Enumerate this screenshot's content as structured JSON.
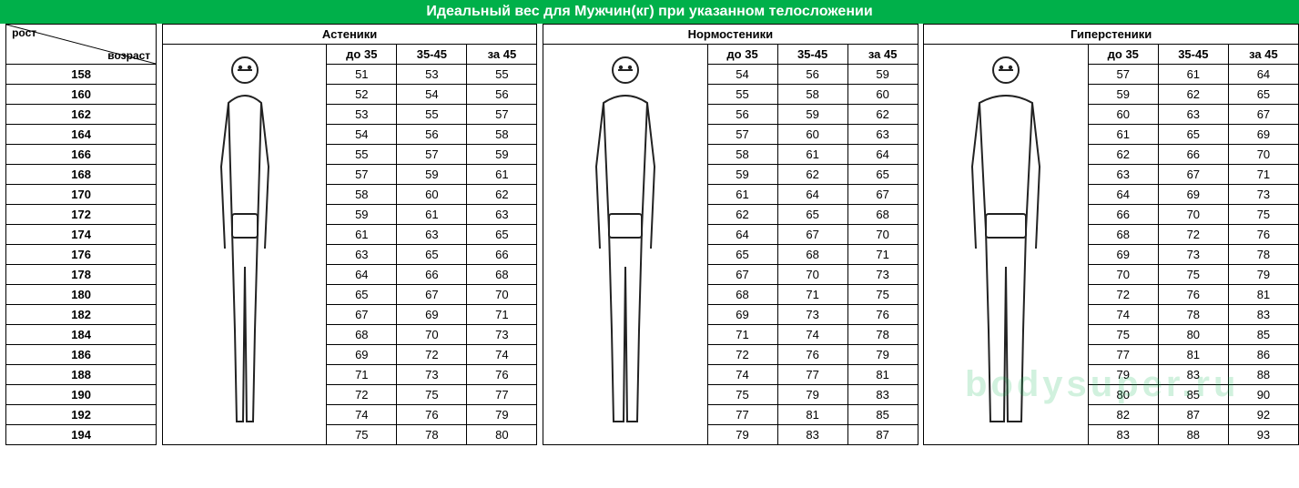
{
  "title": "Идеальный вес для Мужчин(кг) при указанном телосложении",
  "corner_top": "рост",
  "corner_bottom": "возраст",
  "body_types": [
    "Астеники",
    "Нормостеники",
    "Гиперстеники"
  ],
  "age_headers": [
    "до 35",
    "35-45",
    "за 45"
  ],
  "heights": [
    158,
    160,
    162,
    164,
    166,
    168,
    170,
    172,
    174,
    176,
    178,
    180,
    182,
    184,
    186,
    188,
    190,
    192,
    194
  ],
  "data": {
    "ast": [
      [
        51,
        53,
        55
      ],
      [
        52,
        54,
        56
      ],
      [
        53,
        55,
        57
      ],
      [
        54,
        56,
        58
      ],
      [
        55,
        57,
        59
      ],
      [
        57,
        59,
        61
      ],
      [
        58,
        60,
        62
      ],
      [
        59,
        61,
        63
      ],
      [
        61,
        63,
        65
      ],
      [
        63,
        65,
        66
      ],
      [
        64,
        66,
        68
      ],
      [
        65,
        67,
        70
      ],
      [
        67,
        69,
        71
      ],
      [
        68,
        70,
        73
      ],
      [
        69,
        72,
        74
      ],
      [
        71,
        73,
        76
      ],
      [
        72,
        75,
        77
      ],
      [
        74,
        76,
        79
      ],
      [
        75,
        78,
        80
      ]
    ],
    "norm": [
      [
        54,
        56,
        59
      ],
      [
        55,
        58,
        60
      ],
      [
        56,
        59,
        62
      ],
      [
        57,
        60,
        63
      ],
      [
        58,
        61,
        64
      ],
      [
        59,
        62,
        65
      ],
      [
        61,
        64,
        67
      ],
      [
        62,
        65,
        68
      ],
      [
        64,
        67,
        70
      ],
      [
        65,
        68,
        71
      ],
      [
        67,
        70,
        73
      ],
      [
        68,
        71,
        75
      ],
      [
        69,
        73,
        76
      ],
      [
        71,
        74,
        78
      ],
      [
        72,
        76,
        79
      ],
      [
        74,
        77,
        81
      ],
      [
        75,
        79,
        83
      ],
      [
        77,
        81,
        85
      ],
      [
        79,
        83,
        87
      ]
    ],
    "hyp": [
      [
        57,
        61,
        64
      ],
      [
        59,
        62,
        65
      ],
      [
        60,
        63,
        67
      ],
      [
        61,
        65,
        69
      ],
      [
        62,
        66,
        70
      ],
      [
        63,
        67,
        71
      ],
      [
        64,
        69,
        73
      ],
      [
        66,
        70,
        75
      ],
      [
        68,
        72,
        76
      ],
      [
        69,
        73,
        78
      ],
      [
        70,
        75,
        79
      ],
      [
        72,
        76,
        81
      ],
      [
        74,
        78,
        83
      ],
      [
        75,
        80,
        85
      ],
      [
        77,
        81,
        86
      ],
      [
        79,
        83,
        88
      ],
      [
        80,
        85,
        90
      ],
      [
        82,
        87,
        92
      ],
      [
        83,
        88,
        93
      ]
    ]
  },
  "watermark": "bodysuper.ru",
  "colors": {
    "header_bg": "#00b04a",
    "border": "#000000",
    "text": "#000000"
  }
}
